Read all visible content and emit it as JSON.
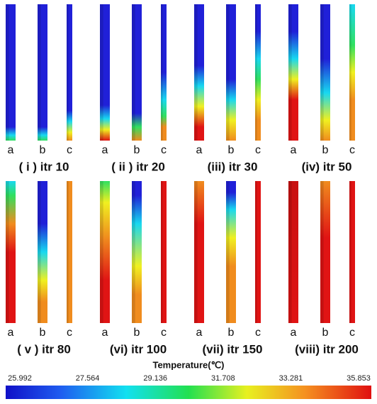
{
  "panels": [
    {
      "caption": "( i ) itr 10",
      "labels": [
        "a",
        "b",
        "c"
      ]
    },
    {
      "caption": "( ii ) itr 20",
      "labels": [
        "a",
        "b",
        "c"
      ]
    },
    {
      "caption": "(iii) itr 30",
      "labels": [
        "a",
        "b",
        "c"
      ]
    },
    {
      "caption": "(iv) itr 50",
      "labels": [
        "a",
        "b",
        "c"
      ]
    },
    {
      "caption": "( v ) itr 80",
      "labels": [
        "a",
        "b",
        "c"
      ]
    },
    {
      "caption": "(vi) itr 100",
      "labels": [
        "a",
        "b",
        "c"
      ]
    },
    {
      "caption": "(vii) itr 150",
      "labels": [
        "a",
        "b",
        "c"
      ]
    },
    {
      "caption": "(viii) itr 200",
      "labels": [
        "a",
        "b",
        "c"
      ]
    }
  ],
  "colorbar": {
    "title": "Temperature(℃)",
    "ticks": [
      25.992,
      27.564,
      29.136,
      31.708,
      33.281,
      35.853
    ]
  }
}
